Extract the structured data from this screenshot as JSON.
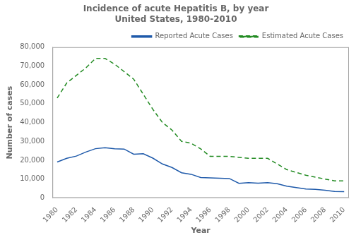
{
  "chart_data": {
    "type": "line",
    "title": "Incidence of acute Hepatitis B, by year\nUnited States, 1980-2010",
    "xlabel": "Year",
    "ylabel": "Number of cases",
    "x": [
      1980,
      1981,
      1982,
      1983,
      1984,
      1985,
      1986,
      1987,
      1988,
      1989,
      1990,
      1991,
      1992,
      1993,
      1994,
      1995,
      1996,
      1997,
      1998,
      1999,
      2000,
      2001,
      2002,
      2003,
      2004,
      2005,
      2006,
      2007,
      2008,
      2009,
      2010
    ],
    "series": [
      {
        "name": "Reported Acute Cases",
        "color": "#1f5aaa",
        "line_style": "solid",
        "values": [
          19015,
          21000,
          22177,
          24318,
          26115,
          26611,
          26107,
          25918,
          23177,
          23419,
          21102,
          18003,
          16126,
          13361,
          12517,
          10805,
          10637,
          10416,
          10258,
          7694,
          8036,
          7843,
          8064,
          7526,
          6212,
          5494,
          4713,
          4519,
          4033,
          3371,
          3350
        ]
      },
      {
        "name": "Estimated Acute Cases",
        "color": "#228b22",
        "line_style": "dashed",
        "values": [
          53000,
          61000,
          65000,
          69000,
          74000,
          74000,
          71000,
          67000,
          63000,
          55000,
          47000,
          40000,
          36000,
          30000,
          29000,
          26000,
          22000,
          22000,
          22000,
          21500,
          21000,
          21000,
          21000,
          18000,
          15000,
          13500,
          12000,
          11000,
          10000,
          9000,
          9000
        ]
      }
    ],
    "xlim": [
      1979.5,
      2010.5
    ],
    "xticks": [
      1980,
      1982,
      1984,
      1986,
      1988,
      1990,
      1992,
      1994,
      1996,
      1998,
      2000,
      2002,
      2004,
      2006,
      2008,
      2010
    ],
    "ylim": [
      0,
      80000
    ],
    "yticks": [
      0,
      {
        "value": 10000,
        "label": "10,000"
      },
      {
        "value": 20000,
        "label": "20,000"
      },
      {
        "value": 30000,
        "label": "30,000"
      },
      {
        "value": 40000,
        "label": "40,000"
      },
      {
        "value": 50000,
        "label": "50,000"
      },
      {
        "value": 60000,
        "label": "60,000"
      },
      {
        "value": 70000,
        "label": "70,000"
      },
      {
        "value": 80000,
        "label": "80,000"
      }
    ],
    "grid": false,
    "legend": "upper right"
  }
}
